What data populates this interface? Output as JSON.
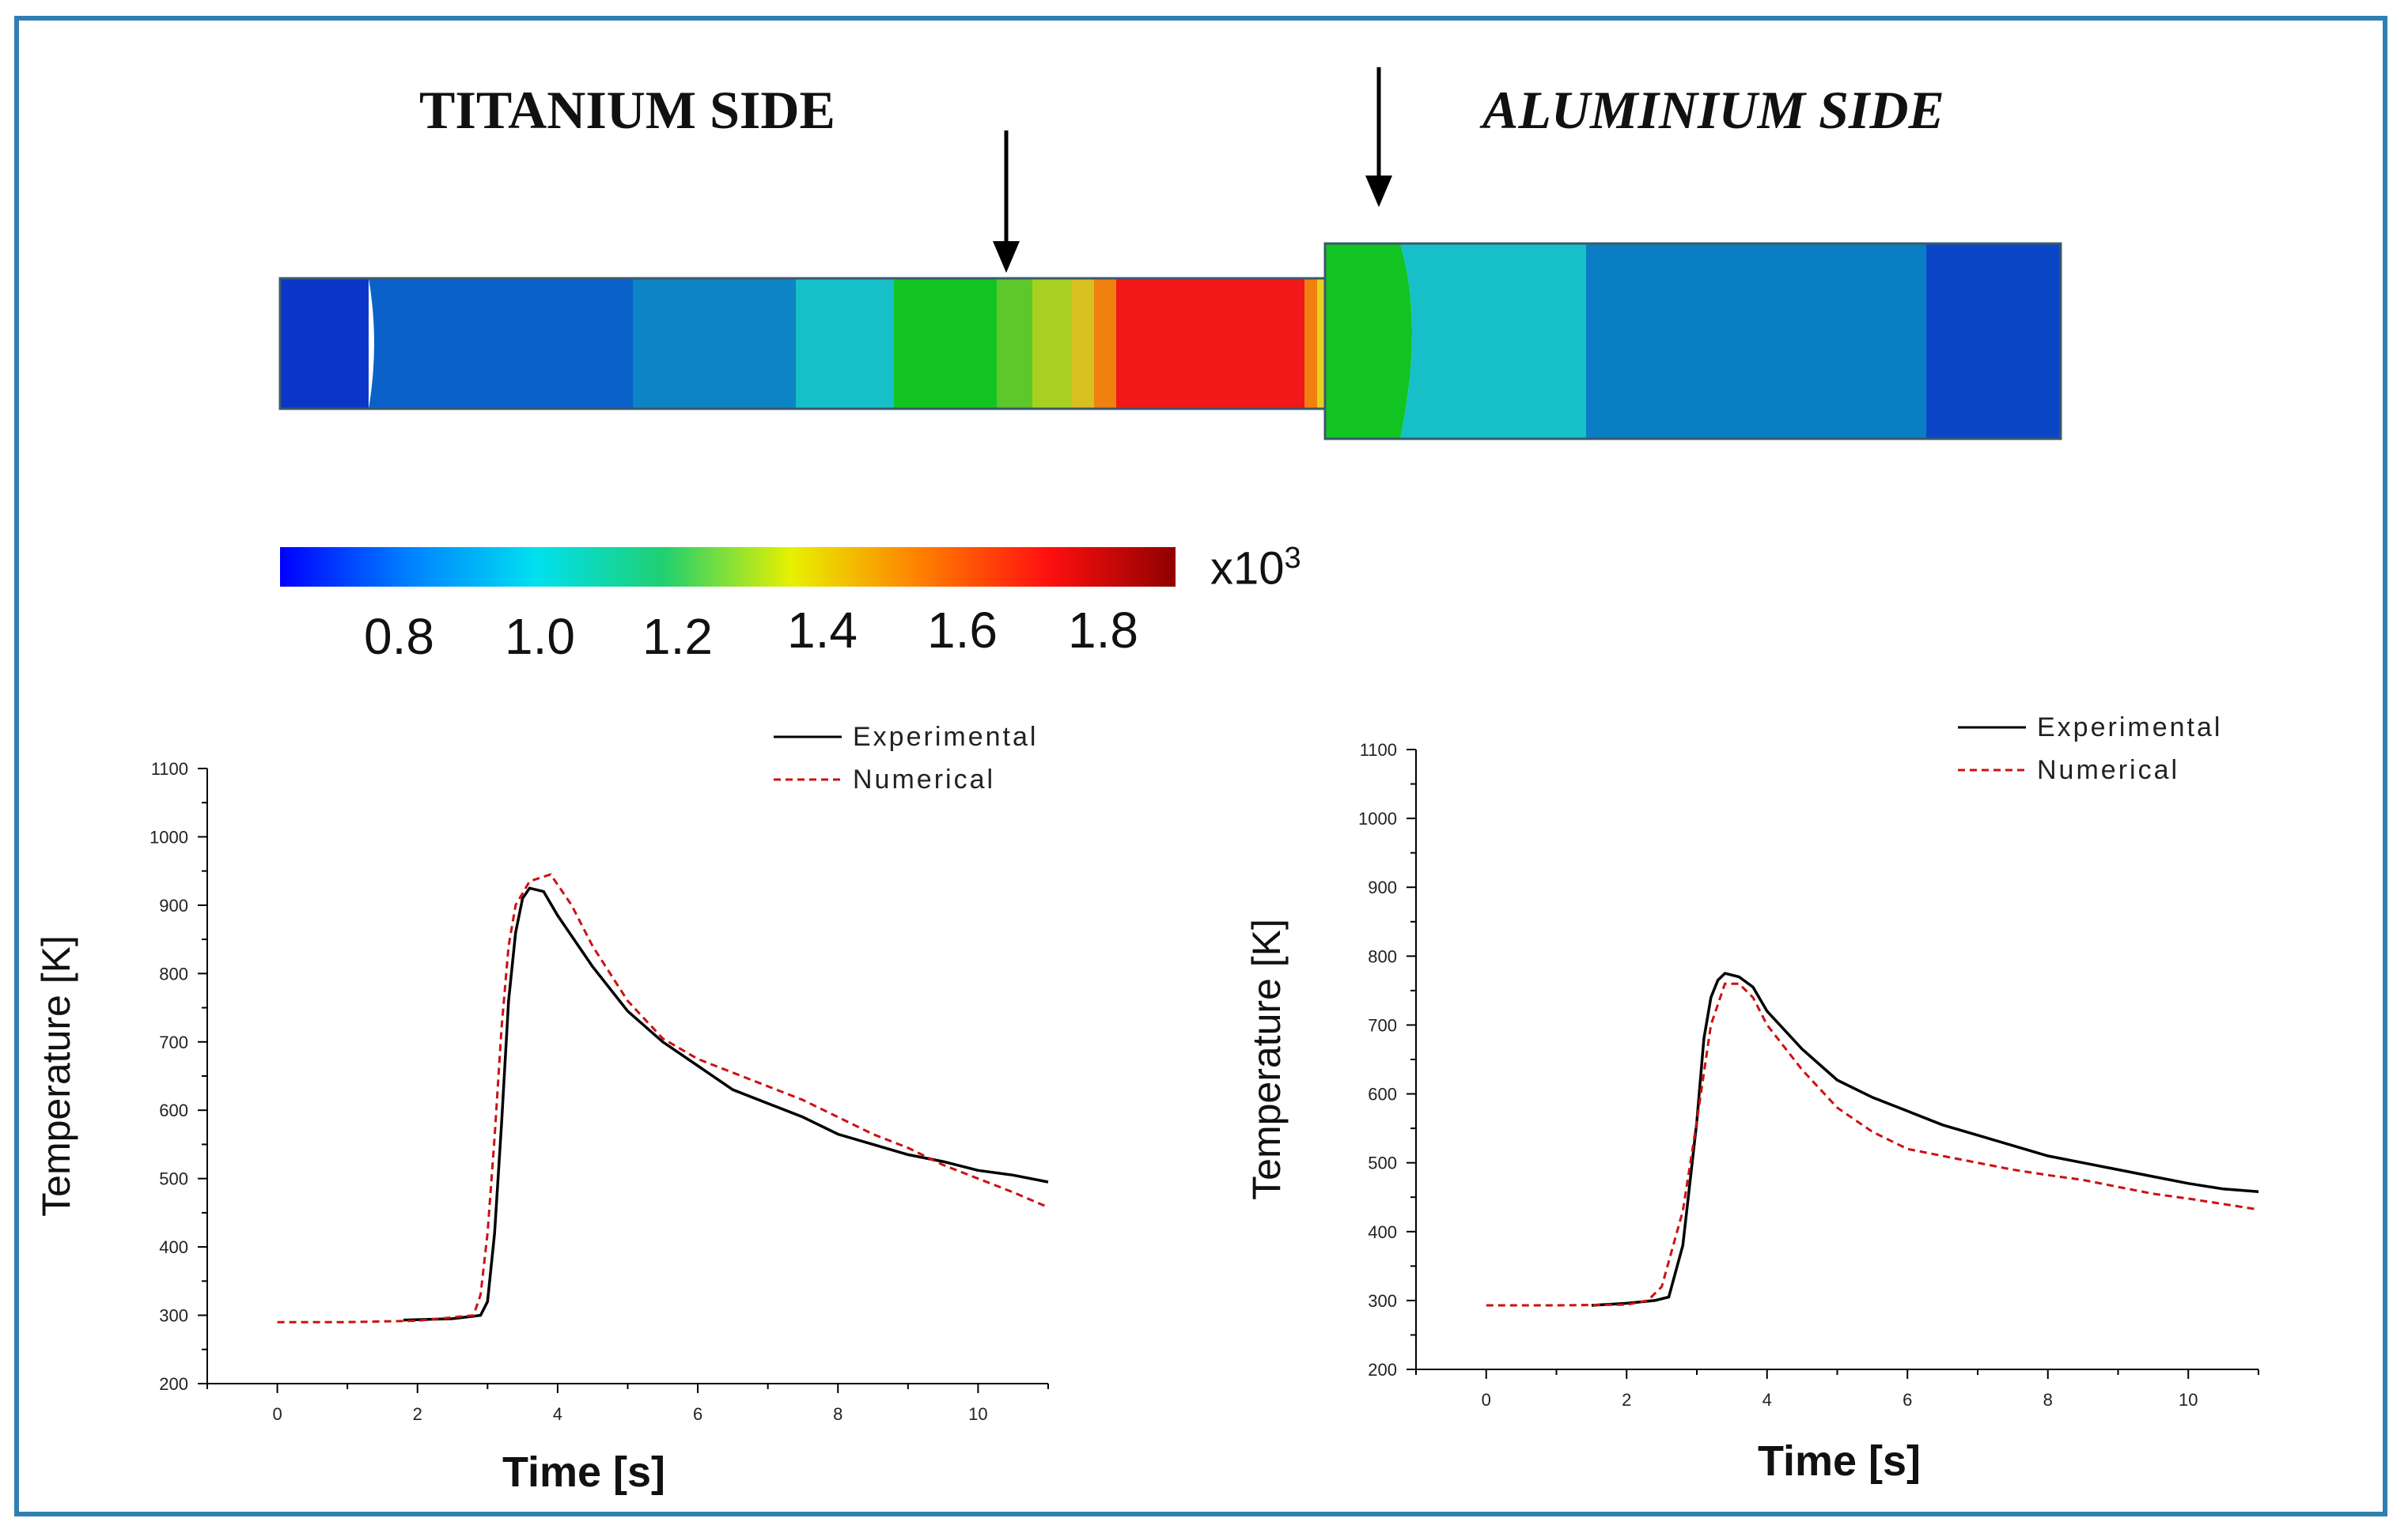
{
  "figure": {
    "titanium_label": "TITANIUM  SIDE",
    "aluminium_label": "ALUMINIUM SIDE",
    "colorbar": {
      "ticks": [
        "0.8",
        "1.0",
        "1.2",
        "1.4",
        "1.6",
        "1.8"
      ],
      "multiplier_base": "x10",
      "multiplier_exp": "3",
      "colormap": [
        "#0000ff",
        "#0080ff",
        "#00e0f0",
        "#20d070",
        "#e8f000",
        "#ff8000",
        "#ff1010",
        "#900000"
      ]
    },
    "model_colors": {
      "deep_blue": "#0a36c8",
      "blue": "#0a62c8",
      "mid_blue": "#0d84c6",
      "cyan": "#17c0c8",
      "green": "#12c422",
      "yellow_green": "#a8d020",
      "orange": "#f08010",
      "red": "#f01818"
    }
  },
  "chart_data": [
    {
      "type": "line",
      "xlabel": "Time [s]",
      "ylabel": "Temperature [K]",
      "xlim": [
        -1,
        11
      ],
      "ylim": [
        200,
        1100
      ],
      "xticks": [
        0,
        2,
        4,
        6,
        8,
        10
      ],
      "yticks": [
        200,
        300,
        400,
        500,
        600,
        700,
        800,
        900,
        1000,
        1100
      ],
      "legend_position": "top-right",
      "grid": false,
      "series": [
        {
          "name": "Experimental",
          "color": "#000000",
          "style": "solid",
          "points": [
            [
              1.8,
              293
            ],
            [
              2.5,
              295
            ],
            [
              2.9,
              300
            ],
            [
              3.0,
              320
            ],
            [
              3.1,
              420
            ],
            [
              3.2,
              580
            ],
            [
              3.3,
              760
            ],
            [
              3.4,
              860
            ],
            [
              3.5,
              910
            ],
            [
              3.6,
              925
            ],
            [
              3.8,
              920
            ],
            [
              4.0,
              885
            ],
            [
              4.5,
              810
            ],
            [
              5.0,
              745
            ],
            [
              5.5,
              700
            ],
            [
              6.0,
              665
            ],
            [
              6.5,
              630
            ],
            [
              7.0,
              610
            ],
            [
              7.5,
              590
            ],
            [
              8.0,
              565
            ],
            [
              8.5,
              550
            ],
            [
              9.0,
              535
            ],
            [
              9.5,
              525
            ],
            [
              10.0,
              512
            ],
            [
              10.5,
              505
            ],
            [
              11.0,
              495
            ]
          ]
        },
        {
          "name": "Numerical",
          "color": "#cc1111",
          "style": "dashed",
          "points": [
            [
              0,
              290
            ],
            [
              1.0,
              290
            ],
            [
              2.0,
              292
            ],
            [
              2.8,
              300
            ],
            [
              2.9,
              330
            ],
            [
              3.0,
              420
            ],
            [
              3.1,
              560
            ],
            [
              3.2,
              720
            ],
            [
              3.3,
              840
            ],
            [
              3.4,
              900
            ],
            [
              3.6,
              935
            ],
            [
              3.9,
              945
            ],
            [
              4.2,
              900
            ],
            [
              4.5,
              840
            ],
            [
              5.0,
              760
            ],
            [
              5.5,
              705
            ],
            [
              6.0,
              675
            ],
            [
              6.5,
              655
            ],
            [
              7.0,
              635
            ],
            [
              7.5,
              615
            ],
            [
              8.0,
              590
            ],
            [
              8.5,
              565
            ],
            [
              9.0,
              545
            ],
            [
              9.5,
              520
            ],
            [
              10.0,
              500
            ],
            [
              10.5,
              480
            ],
            [
              11.0,
              458
            ]
          ]
        }
      ]
    },
    {
      "type": "line",
      "xlabel": "Time [s]",
      "ylabel": "Temperature [K]",
      "xlim": [
        -1,
        11
      ],
      "ylim": [
        200,
        1100
      ],
      "xticks": [
        0,
        2,
        4,
        6,
        8,
        10
      ],
      "yticks": [
        200,
        300,
        400,
        500,
        600,
        700,
        800,
        900,
        1000,
        1100
      ],
      "legend_position": "top-right",
      "grid": false,
      "series": [
        {
          "name": "Experimental",
          "color": "#000000",
          "style": "solid",
          "points": [
            [
              1.5,
              293
            ],
            [
              2.0,
              296
            ],
            [
              2.4,
              300
            ],
            [
              2.6,
              305
            ],
            [
              2.8,
              380
            ],
            [
              3.0,
              560
            ],
            [
              3.1,
              680
            ],
            [
              3.2,
              740
            ],
            [
              3.3,
              765
            ],
            [
              3.4,
              775
            ],
            [
              3.6,
              770
            ],
            [
              3.8,
              755
            ],
            [
              4.0,
              720
            ],
            [
              4.5,
              665
            ],
            [
              5.0,
              620
            ],
            [
              5.5,
              595
            ],
            [
              6.0,
              575
            ],
            [
              6.5,
              555
            ],
            [
              7.0,
              540
            ],
            [
              7.5,
              525
            ],
            [
              8.0,
              510
            ],
            [
              8.5,
              500
            ],
            [
              9.0,
              490
            ],
            [
              9.5,
              480
            ],
            [
              10.0,
              470
            ],
            [
              10.5,
              462
            ],
            [
              11.0,
              458
            ]
          ]
        },
        {
          "name": "Numerical",
          "color": "#cc1111",
          "style": "dashed",
          "points": [
            [
              0,
              293
            ],
            [
              1.0,
              293
            ],
            [
              2.0,
              294
            ],
            [
              2.3,
              300
            ],
            [
              2.5,
              320
            ],
            [
              2.8,
              430
            ],
            [
              3.0,
              560
            ],
            [
              3.2,
              700
            ],
            [
              3.4,
              760
            ],
            [
              3.6,
              760
            ],
            [
              3.8,
              740
            ],
            [
              4.0,
              700
            ],
            [
              4.5,
              635
            ],
            [
              5.0,
              580
            ],
            [
              5.5,
              545
            ],
            [
              6.0,
              520
            ],
            [
              6.5,
              510
            ],
            [
              7.0,
              500
            ],
            [
              7.5,
              490
            ],
            [
              8.0,
              482
            ],
            [
              8.5,
              475
            ],
            [
              9.0,
              465
            ],
            [
              9.5,
              455
            ],
            [
              10.0,
              448
            ],
            [
              10.5,
              440
            ],
            [
              11.0,
              432
            ]
          ]
        }
      ]
    }
  ]
}
